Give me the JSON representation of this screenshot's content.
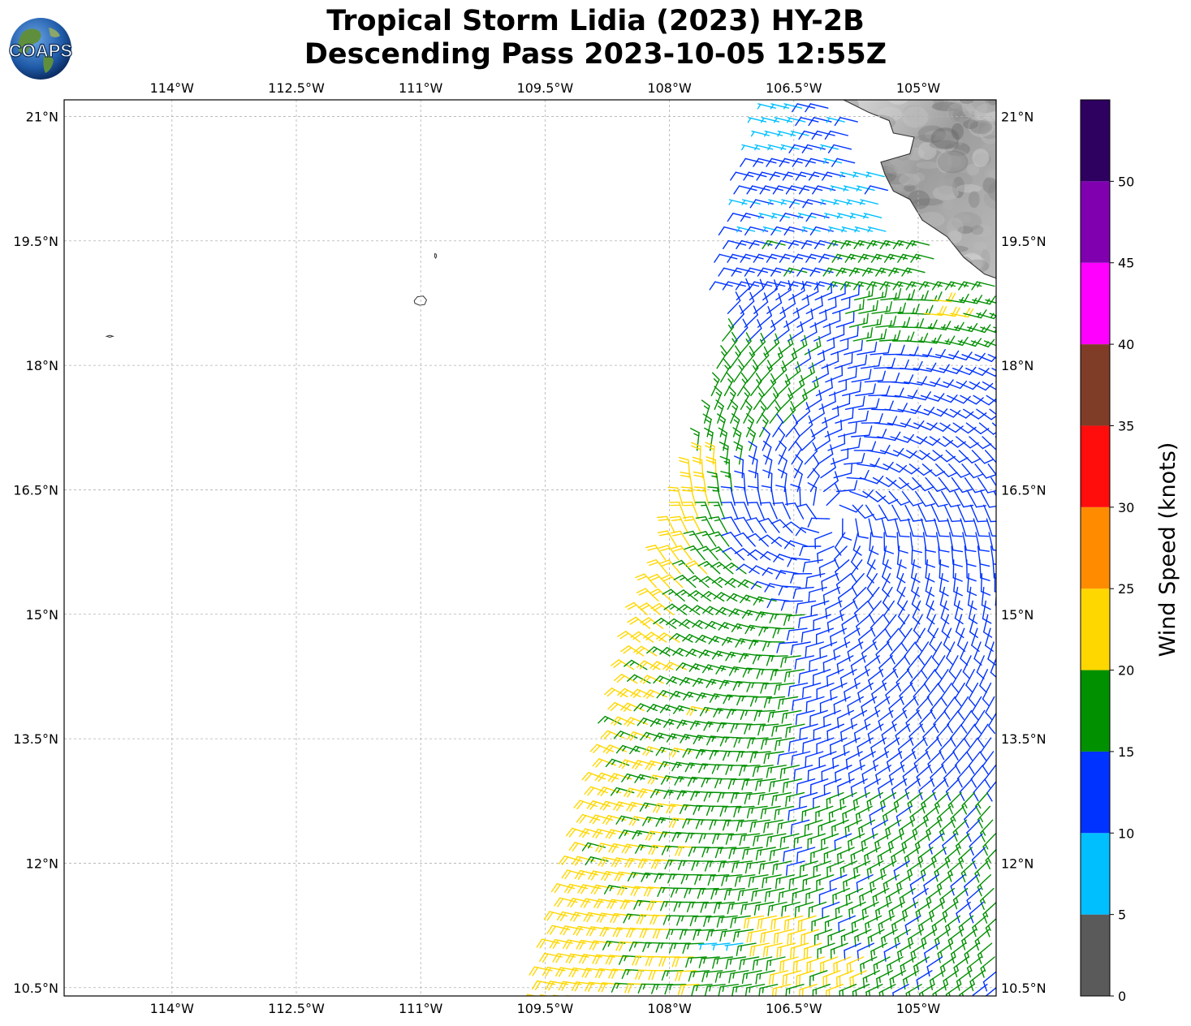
{
  "header": {
    "title_line1": "Tropical Storm Lidia (2023) HY-2B",
    "title_line2": "Descending Pass 2023-10-05 12:55Z",
    "logo_text": "COAPS"
  },
  "chart_data": {
    "type": "wind-barb-map",
    "longitude_ticks": [
      {
        "value": -114.0,
        "label": "114°W"
      },
      {
        "value": -112.5,
        "label": "112.5°W"
      },
      {
        "value": -111.0,
        "label": "111°W"
      },
      {
        "value": -109.5,
        "label": "109.5°W"
      },
      {
        "value": -108.0,
        "label": "108°W"
      },
      {
        "value": -106.5,
        "label": "106.5°W"
      },
      {
        "value": -105.0,
        "label": "105°W"
      }
    ],
    "latitude_ticks": [
      {
        "value": 21.0,
        "label": "21°N"
      },
      {
        "value": 19.5,
        "label": "19.5°N"
      },
      {
        "value": 18.0,
        "label": "18°N"
      },
      {
        "value": 16.5,
        "label": "16.5°N"
      },
      {
        "value": 15.0,
        "label": "15°N"
      },
      {
        "value": 13.5,
        "label": "13.5°N"
      },
      {
        "value": 12.0,
        "label": "12°N"
      },
      {
        "value": 10.5,
        "label": "10.5°N"
      }
    ],
    "lon_range": [
      -115.3,
      -104.06
    ],
    "lat_range": [
      10.4,
      21.2
    ],
    "grid": true,
    "colorbar": {
      "label": "Wind Speed (knots)",
      "ticks": [
        "0",
        "5",
        "10",
        "15",
        "20",
        "25",
        "30",
        "35",
        "40",
        "45",
        "50"
      ],
      "bins": [
        {
          "min": 0,
          "max": 5,
          "color": "#5a5a5a"
        },
        {
          "min": 5,
          "max": 10,
          "color": "#00bfff"
        },
        {
          "min": 10,
          "max": 15,
          "color": "#0033ff"
        },
        {
          "min": 15,
          "max": 20,
          "color": "#009000"
        },
        {
          "min": 20,
          "max": 25,
          "color": "#ffd700"
        },
        {
          "min": 25,
          "max": 30,
          "color": "#ff8c00"
        },
        {
          "min": 30,
          "max": 35,
          "color": "#ff0d0d"
        },
        {
          "min": 35,
          "max": 40,
          "color": "#7f3d28"
        },
        {
          "min": 40,
          "max": 45,
          "color": "#ff00ff"
        },
        {
          "min": 45,
          "max": 50,
          "color": "#8000b0"
        },
        {
          "min": 50,
          "max": 55,
          "color": "#2e0060"
        }
      ]
    },
    "swath": {
      "pass": "Descending",
      "west_edge": [
        [
          -106.8,
          21.1
        ],
        [
          -107.1,
          19.8
        ],
        [
          -107.3,
          18.6
        ],
        [
          -107.5,
          17.6
        ],
        [
          -107.9,
          16.1
        ],
        [
          -108.3,
          14.9
        ],
        [
          -108.6,
          13.6
        ],
        [
          -108.9,
          12.6
        ],
        [
          -109.2,
          11.5
        ],
        [
          -109.5,
          10.4
        ]
      ],
      "east_edge_lon": -104.06,
      "storm_center": [
        -106.05,
        16.2
      ],
      "direction_convention": "meteorological, cyclonic circulation",
      "speed_regions": [
        {
          "zone": "north coast",
          "speed_range_kt": [
            5,
            15
          ]
        },
        {
          "zone": "west of center",
          "speed_range_kt": [
            15,
            25
          ]
        },
        {
          "zone": "far west edge 14-17N",
          "speed_range_kt": [
            20,
            25
          ]
        },
        {
          "zone": "east and south",
          "speed_range_kt": [
            10,
            20
          ]
        },
        {
          "zone": "11N band",
          "speed_range_kt": [
            20,
            25
          ]
        }
      ]
    },
    "islands": [
      {
        "name": "",
        "lon": -111.0,
        "lat": 18.78
      },
      {
        "name": "",
        "lon": -110.82,
        "lat": 19.32
      },
      {
        "name": "",
        "lon": -114.75,
        "lat": 18.35
      }
    ]
  }
}
